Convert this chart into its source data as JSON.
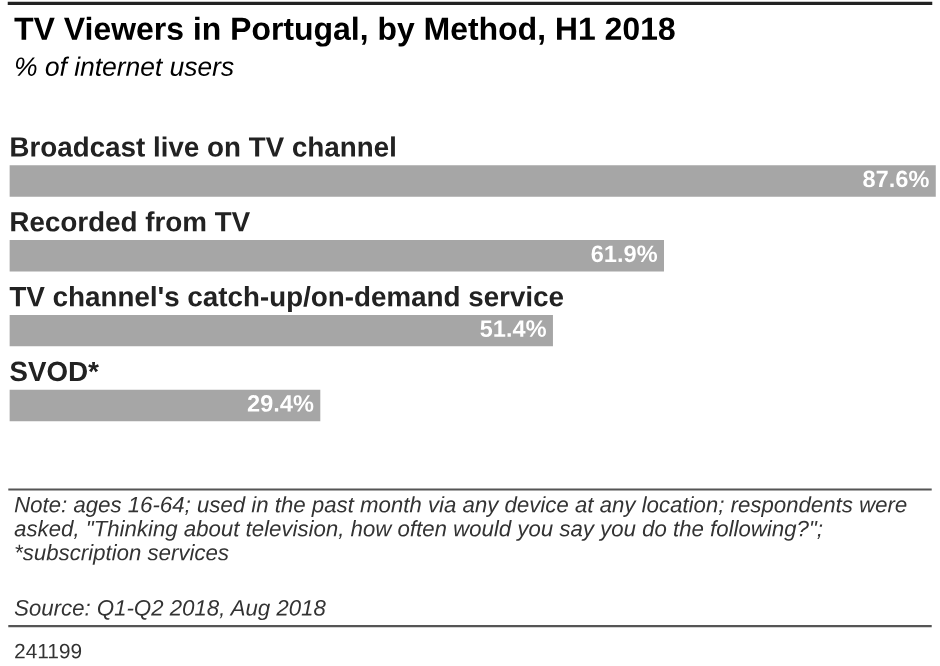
{
  "chart_data": {
    "type": "bar",
    "orientation": "horizontal",
    "title": "TV Viewers in Portugal, by Method, H1 2018",
    "subtitle": "% of internet users",
    "categories": [
      "Broadcast live on TV channel",
      "Recorded from TV",
      "TV channel's catch-up/on-demand service",
      "SVOD*"
    ],
    "values": [
      87.6,
      61.9,
      51.4,
      29.4
    ],
    "value_labels": [
      "87.6%",
      "61.9%",
      "51.4%",
      "29.4%"
    ],
    "color": "#a6a6a6",
    "xlim": [
      0,
      88
    ],
    "annotations": [
      "Note: ages 16-64; used in the past month via any device at any location; respondents were asked, \"Thinking about television, how often would you say you do the following?\"; *subscription services",
      "Source: Q1-Q2 2018, Aug 2018",
      "241199"
    ]
  }
}
